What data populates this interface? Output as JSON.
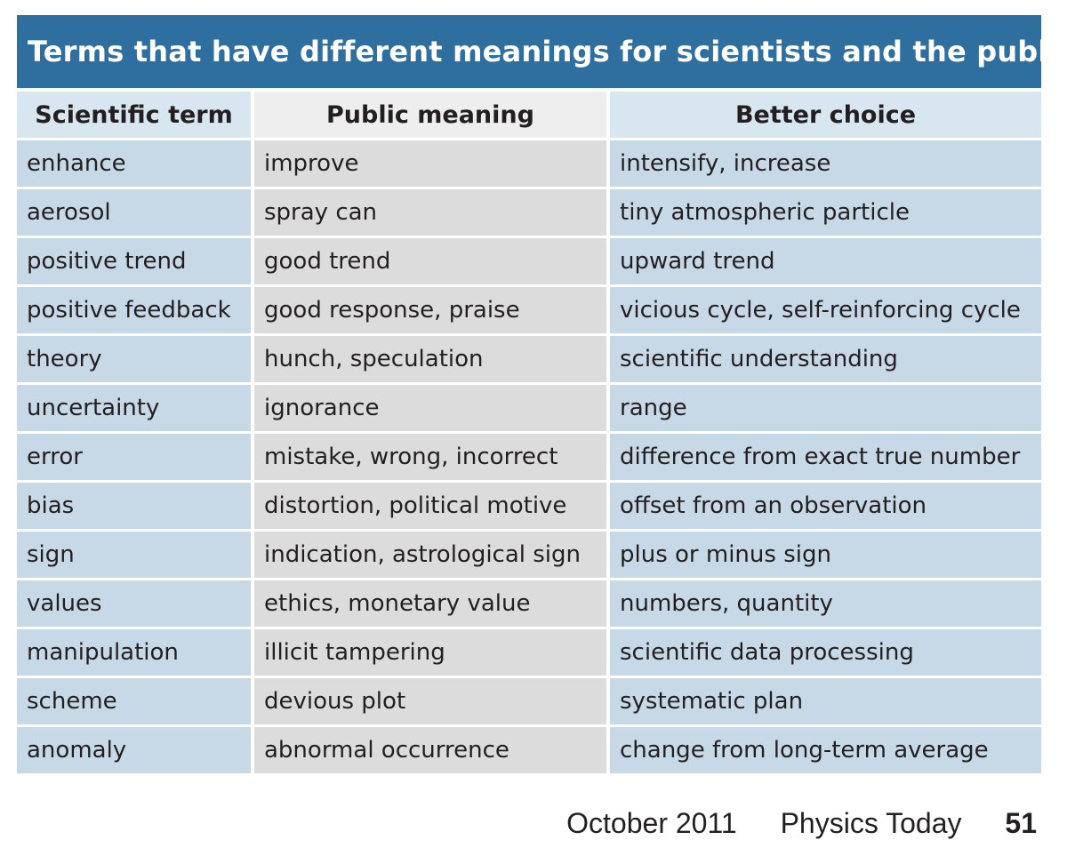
{
  "title": "Terms that have different meanings for scientists and the public",
  "headers": [
    "Scientific term",
    "Public meaning",
    "Better choice"
  ],
  "rows": [
    [
      "enhance",
      "improve",
      "intensify, increase"
    ],
    [
      "aerosol",
      "spray can",
      "tiny atmospheric particle"
    ],
    [
      "positive trend",
      "good trend",
      "upward trend"
    ],
    [
      "positive feedback",
      "good response, praise",
      "vicious cycle, self-reinforcing cycle"
    ],
    [
      "theory",
      "hunch, speculation",
      "scientific understanding"
    ],
    [
      "uncertainty",
      "ignorance",
      "range"
    ],
    [
      "error",
      "mistake, wrong, incorrect",
      "difference from exact true number"
    ],
    [
      "bias",
      "distortion, political motive",
      "offset from an observation"
    ],
    [
      "sign",
      "indication, astrological sign",
      "plus or minus sign"
    ],
    [
      "values",
      "ethics, monetary value",
      "numbers, quantity"
    ],
    [
      "manipulation",
      "illicit tampering",
      "scientific data processing"
    ],
    [
      "scheme",
      "devious plot",
      "systematic plan"
    ],
    [
      "anomaly",
      "abnormal occurrence",
      "change from long-term average"
    ]
  ],
  "footer": {
    "date": "October 2011",
    "publication": "Physics Today",
    "page": "51"
  },
  "colors": {
    "title_bg": "#2f6f9f",
    "blue_cell": "#c7d9e6",
    "gray_cell": "#dcdcdc"
  }
}
